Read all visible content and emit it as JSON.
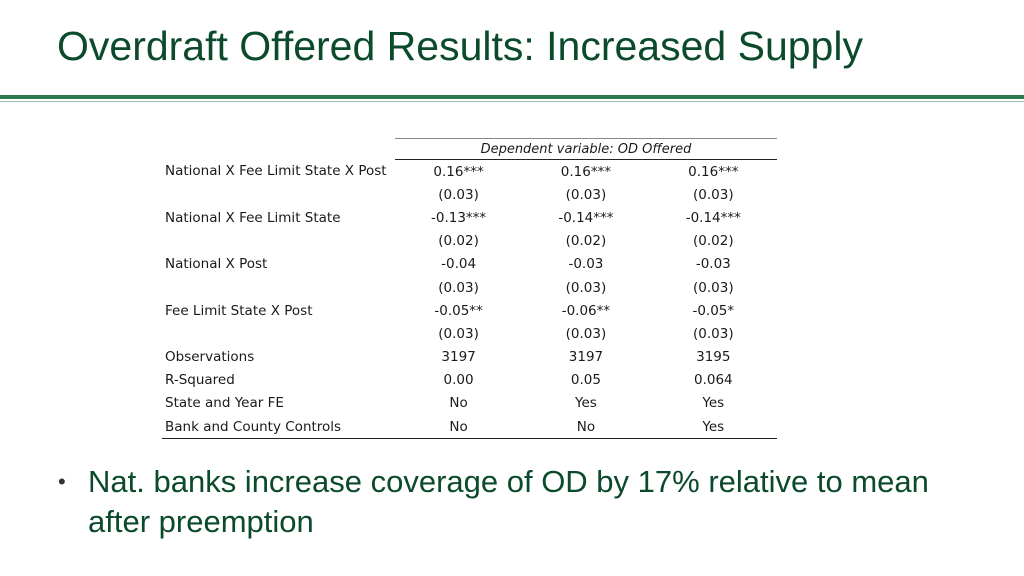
{
  "slide": {
    "title": "Overdraft Offered Results: Increased Supply",
    "bullet": "Nat. banks increase coverage of OD by 17% relative to mean after preemption",
    "bullet_marker": "•"
  },
  "table": {
    "dependent_variable": "Dependent variable: OD Offered",
    "rows": [
      {
        "label": "National X Fee Limit State X Post",
        "values": [
          "0.16***",
          "0.16***",
          "0.16***"
        ]
      },
      {
        "label": "",
        "values": [
          "(0.03)",
          "(0.03)",
          "(0.03)"
        ]
      },
      {
        "label": "National X Fee Limit State",
        "values": [
          "-0.13***",
          "-0.14***",
          "-0.14***"
        ]
      },
      {
        "label": "",
        "values": [
          "(0.02)",
          "(0.02)",
          "(0.02)"
        ]
      },
      {
        "label": "National X Post",
        "values": [
          "-0.04",
          "-0.03",
          "-0.03"
        ]
      },
      {
        "label": "",
        "values": [
          "(0.03)",
          "(0.03)",
          "(0.03)"
        ]
      },
      {
        "label": "Fee Limit State X Post",
        "values": [
          "-0.05**",
          "-0.06**",
          "-0.05*"
        ]
      },
      {
        "label": "",
        "values": [
          "(0.03)",
          "(0.03)",
          "(0.03)"
        ]
      },
      {
        "label": "Observations",
        "values": [
          "3197",
          "3197",
          "3195"
        ]
      },
      {
        "label": "R-Squared",
        "values": [
          "0.00",
          "0.05",
          "0.064"
        ]
      },
      {
        "label": "State and Year FE",
        "values": [
          "No",
          "Yes",
          "Yes"
        ]
      },
      {
        "label": "Bank and County Controls",
        "values": [
          "No",
          "No",
          "Yes"
        ]
      }
    ]
  },
  "colors": {
    "title": "#0b4a2a",
    "rule": "#2e7a4f"
  }
}
